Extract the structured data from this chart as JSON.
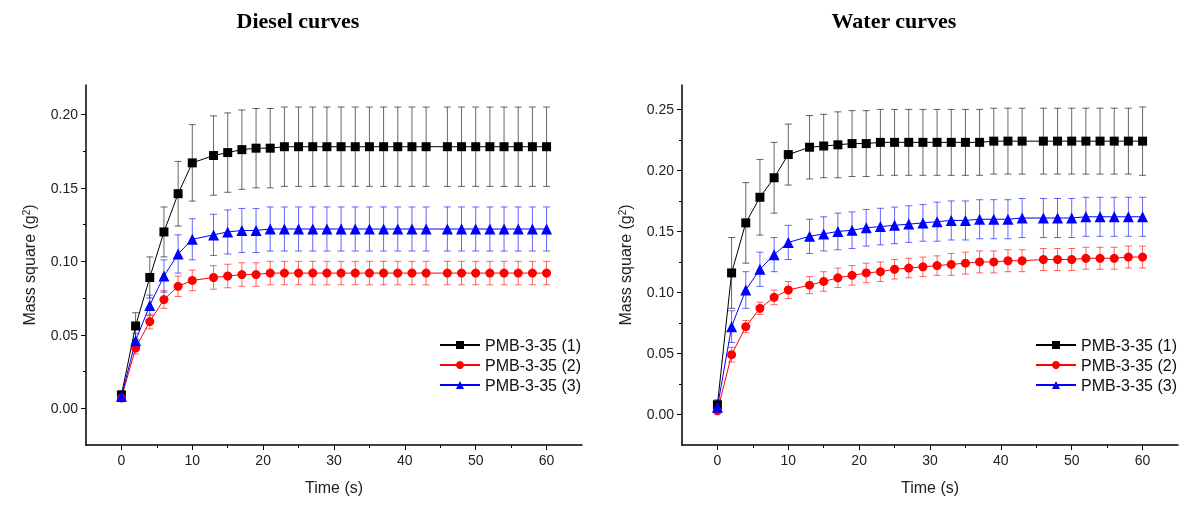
{
  "chart_data": [
    {
      "type": "line",
      "title": "Diesel curves",
      "xlabel": "Time (s)",
      "ylabel": "Mass square (g$^{2}$)",
      "x": [
        0,
        2,
        4,
        6,
        8,
        10,
        13,
        15,
        17,
        19,
        21,
        23,
        25,
        27,
        29,
        31,
        33,
        35,
        37,
        39,
        41,
        43,
        46,
        48,
        50,
        52,
        54,
        56,
        58,
        60
      ],
      "xlim": [
        -5,
        65
      ],
      "xticks": [
        0,
        10,
        20,
        30,
        40,
        50,
        60
      ],
      "ylim": [
        -0.025,
        0.22
      ],
      "yticks": [
        {
          "value": 0,
          "label": "0.00"
        },
        {
          "value": 0.05,
          "label": "0.05"
        },
        {
          "value": 0.1,
          "label": "0.10"
        },
        {
          "value": 0.15,
          "label": "0.15"
        },
        {
          "value": 0.2,
          "label": "0.20"
        }
      ],
      "grid": false,
      "legend": "bottom right",
      "line_style": "solid",
      "series": [
        {
          "name": "PMB-3-35 (1)",
          "color": "#000000",
          "marker": "square",
          "values": [
            0.009,
            0.056,
            0.089,
            0.12,
            0.146,
            0.167,
            0.172,
            0.174,
            0.176,
            0.177,
            0.177,
            0.178,
            0.178,
            0.178,
            0.178,
            0.178,
            0.178,
            0.178,
            0.178,
            0.178,
            0.178,
            0.178,
            0.178,
            0.178,
            0.178,
            0.178,
            0.178,
            0.178,
            0.178,
            0.178
          ],
          "errors": [
            0.003,
            0.009,
            0.014,
            0.017,
            0.022,
            0.026,
            0.027,
            0.027,
            0.027,
            0.027,
            0.027,
            0.027,
            0.027,
            0.027,
            0.027,
            0.027,
            0.027,
            0.027,
            0.027,
            0.027,
            0.027,
            0.027,
            0.027,
            0.027,
            0.027,
            0.027,
            0.027,
            0.027,
            0.027,
            0.027
          ]
        },
        {
          "name": "PMB-3-35 (2)",
          "color": "#ff0000",
          "marker": "circle",
          "values": [
            0.007,
            0.041,
            0.059,
            0.074,
            0.083,
            0.087,
            0.089,
            0.09,
            0.091,
            0.091,
            0.092,
            0.092,
            0.092,
            0.092,
            0.092,
            0.092,
            0.092,
            0.092,
            0.092,
            0.092,
            0.092,
            0.092,
            0.092,
            0.092,
            0.092,
            0.092,
            0.092,
            0.092,
            0.092,
            0.092
          ],
          "errors": [
            null,
            0.004,
            0.005,
            0.006,
            0.007,
            0.007,
            0.008,
            0.008,
            0.008,
            0.008,
            0.008,
            0.008,
            0.008,
            0.008,
            0.008,
            0.008,
            0.008,
            0.008,
            0.008,
            0.008,
            0.008,
            0.008,
            0.008,
            0.008,
            0.008,
            0.008,
            0.008,
            0.008,
            0.008,
            0.008
          ]
        },
        {
          "name": "PMB-3-35 (3)",
          "color": "#0000ff",
          "marker": "triangle",
          "values": [
            0.008,
            0.046,
            0.07,
            0.09,
            0.105,
            0.115,
            0.118,
            0.12,
            0.121,
            0.121,
            0.122,
            0.122,
            0.122,
            0.122,
            0.122,
            0.122,
            0.122,
            0.122,
            0.122,
            0.122,
            0.122,
            0.122,
            0.122,
            0.122,
            0.122,
            0.122,
            0.122,
            0.122,
            0.122,
            0.122
          ],
          "errors": [
            null,
            0.005,
            0.007,
            0.011,
            0.013,
            0.014,
            0.014,
            0.015,
            0.015,
            0.015,
            0.015,
            0.015,
            0.015,
            0.015,
            0.015,
            0.015,
            0.015,
            0.015,
            0.015,
            0.015,
            0.015,
            0.015,
            0.015,
            0.015,
            0.015,
            0.015,
            0.015,
            0.015,
            0.015,
            0.015
          ]
        }
      ]
    },
    {
      "type": "line",
      "title": "Water curves",
      "xlabel": "Time (s)",
      "ylabel": "Mass square (g$^{2}$)",
      "x": [
        0,
        2,
        4,
        6,
        8,
        10,
        13,
        15,
        17,
        19,
        21,
        23,
        25,
        27,
        29,
        31,
        33,
        35,
        37,
        39,
        41,
        43,
        46,
        48,
        50,
        52,
        54,
        56,
        58,
        60
      ],
      "xlim": [
        -5,
        65
      ],
      "xticks": [
        0,
        10,
        20,
        30,
        40,
        50,
        60
      ],
      "ylim": [
        -0.025,
        0.27
      ],
      "yticks": [
        {
          "value": 0,
          "label": "0.00"
        },
        {
          "value": 0.05,
          "label": "0.05"
        },
        {
          "value": 0.1,
          "label": "0.10"
        },
        {
          "value": 0.15,
          "label": "0.15"
        },
        {
          "value": 0.2,
          "label": "0.20"
        },
        {
          "value": 0.25,
          "label": "0.25"
        }
      ],
      "grid": false,
      "legend": "bottom right",
      "line_style": "solid",
      "series": [
        {
          "name": "PMB-3-35 (1)",
          "color": "#000000",
          "marker": "square",
          "values": [
            0.008,
            0.116,
            0.157,
            0.178,
            0.194,
            0.213,
            0.219,
            0.22,
            0.221,
            0.222,
            0.222,
            0.223,
            0.223,
            0.223,
            0.223,
            0.223,
            0.223,
            0.223,
            0.223,
            0.224,
            0.224,
            0.224,
            0.224,
            0.224,
            0.224,
            0.224,
            0.224,
            0.224,
            0.224,
            0.224
          ],
          "errors": [
            0.004,
            0.029,
            0.033,
            0.031,
            0.029,
            0.025,
            0.026,
            0.026,
            0.027,
            0.027,
            0.027,
            0.027,
            0.027,
            0.027,
            0.027,
            0.027,
            0.027,
            0.027,
            0.027,
            0.027,
            0.027,
            0.027,
            0.027,
            0.027,
            0.027,
            0.027,
            0.027,
            0.027,
            0.027,
            0.028
          ]
        },
        {
          "name": "PMB-3-35 (2)",
          "color": "#ff0000",
          "marker": "circle",
          "values": [
            0.003,
            0.049,
            0.072,
            0.087,
            0.096,
            0.102,
            0.106,
            0.109,
            0.112,
            0.114,
            0.116,
            0.117,
            0.119,
            0.12,
            0.121,
            0.122,
            0.123,
            0.124,
            0.125,
            0.125,
            0.126,
            0.126,
            0.127,
            0.127,
            0.127,
            0.128,
            0.128,
            0.128,
            0.129,
            0.129
          ],
          "errors": [
            null,
            0.006,
            0.005,
            0.005,
            0.006,
            0.007,
            0.007,
            0.008,
            0.008,
            0.008,
            0.008,
            0.008,
            0.008,
            0.008,
            0.008,
            0.008,
            0.009,
            0.009,
            0.009,
            0.009,
            0.009,
            0.009,
            0.009,
            0.009,
            0.009,
            0.009,
            0.009,
            0.009,
            0.009,
            0.009
          ]
        },
        {
          "name": "PMB-3-35 (3)",
          "color": "#0000ff",
          "marker": "triangle",
          "values": [
            0.006,
            0.072,
            0.102,
            0.119,
            0.131,
            0.141,
            0.146,
            0.148,
            0.15,
            0.151,
            0.153,
            0.154,
            0.155,
            0.156,
            0.157,
            0.158,
            0.159,
            0.159,
            0.16,
            0.16,
            0.16,
            0.161,
            0.161,
            0.161,
            0.161,
            0.162,
            0.162,
            0.162,
            0.162,
            0.162
          ],
          "errors": [
            null,
            0.013,
            0.015,
            0.014,
            0.014,
            0.014,
            0.014,
            0.014,
            0.015,
            0.015,
            0.015,
            0.015,
            0.015,
            0.015,
            0.015,
            0.016,
            0.016,
            0.016,
            0.016,
            0.016,
            0.016,
            0.016,
            0.016,
            0.016,
            0.016,
            0.016,
            0.016,
            0.016,
            0.016,
            0.016
          ]
        }
      ]
    }
  ]
}
